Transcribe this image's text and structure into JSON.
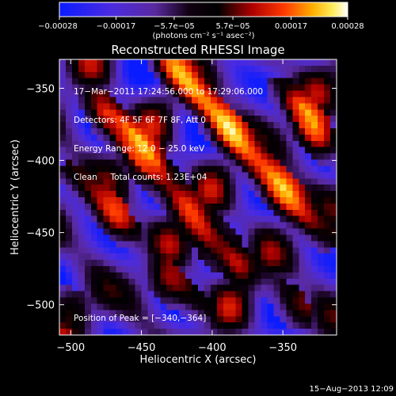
{
  "chart_data": {
    "type": "heatmap",
    "title": "Reconstructed RHESSI Image",
    "xlabel": "Heliocentric X (arcsec)",
    "ylabel": "Heliocentric Y (arcsec)",
    "xlim": [
      -508,
      -312
    ],
    "ylim": [
      -521,
      -330
    ],
    "x_ticks": [
      -500,
      -450,
      -400,
      -350
    ],
    "y_ticks": [
      -350,
      -400,
      -450,
      -500
    ],
    "x_tick_labels": [
      "−500",
      "−450",
      "−400",
      "−350"
    ],
    "y_tick_labels": [
      "−350",
      "−400",
      "−450",
      "−500"
    ],
    "colorbar": {
      "range": [
        -0.00028,
        0.00028
      ],
      "tick_labels": [
        "−0.00028",
        "−0.00017",
        "−5.7e−05",
        "5.7e−05",
        "0.00017",
        "0.00028"
      ],
      "unit_label": "(photons cm⁻² s⁻¹ asec⁻²)",
      "colormap": "blue-purple-black-red-yellow-white"
    },
    "annotations": [
      "17−Mar−2011 17:24:56.000 to 17:29:06.000",
      "Detectors: 4F 5F 6F 7F 8F, Att 0",
      "Energy Range: 12.0 − 25.0 keV",
      "Clean     Total counts: 1.23E+04"
    ],
    "peak_label": "Position of Peak = [−340,−364]",
    "peak_position": [
      -340,
      -364
    ],
    "field": {
      "description": "diagonal ridge pattern of alternating positive and negative flux",
      "ridges": [
        {
          "x": -473,
          "y": -372,
          "strength": 1.0
        },
        {
          "x": -455,
          "y": -390,
          "strength": 0.95
        },
        {
          "x": -440,
          "y": -408,
          "strength": 0.85
        },
        {
          "x": -420,
          "y": -432,
          "strength": 0.9
        },
        {
          "x": -400,
          "y": -455,
          "strength": 0.85
        },
        {
          "x": -382,
          "y": -472,
          "strength": 0.75
        },
        {
          "x": -410,
          "y": -357,
          "strength": 0.9
        },
        {
          "x": -390,
          "y": -380,
          "strength": 0.9
        },
        {
          "x": -370,
          "y": -402,
          "strength": 0.85
        },
        {
          "x": -352,
          "y": -422,
          "strength": 0.9
        },
        {
          "x": -332,
          "y": -443,
          "strength": 0.8
        },
        {
          "x": -340,
          "y": -364,
          "strength": 1.0
        },
        {
          "x": -325,
          "y": -385,
          "strength": 0.8
        },
        {
          "x": -490,
          "y": -420,
          "strength": 0.55
        },
        {
          "x": -468,
          "y": -442,
          "strength": 0.6
        },
        {
          "x": -435,
          "y": -483,
          "strength": 0.5
        },
        {
          "x": -415,
          "y": -497,
          "strength": 0.45
        },
        {
          "x": -345,
          "y": -500,
          "strength": 0.55
        },
        {
          "x": -430,
          "y": -336,
          "strength": 0.6
        },
        {
          "x": -495,
          "y": -505,
          "strength": 0.5
        }
      ]
    }
  },
  "footer": {
    "timestamp": "15−Aug−2013 12:09"
  }
}
